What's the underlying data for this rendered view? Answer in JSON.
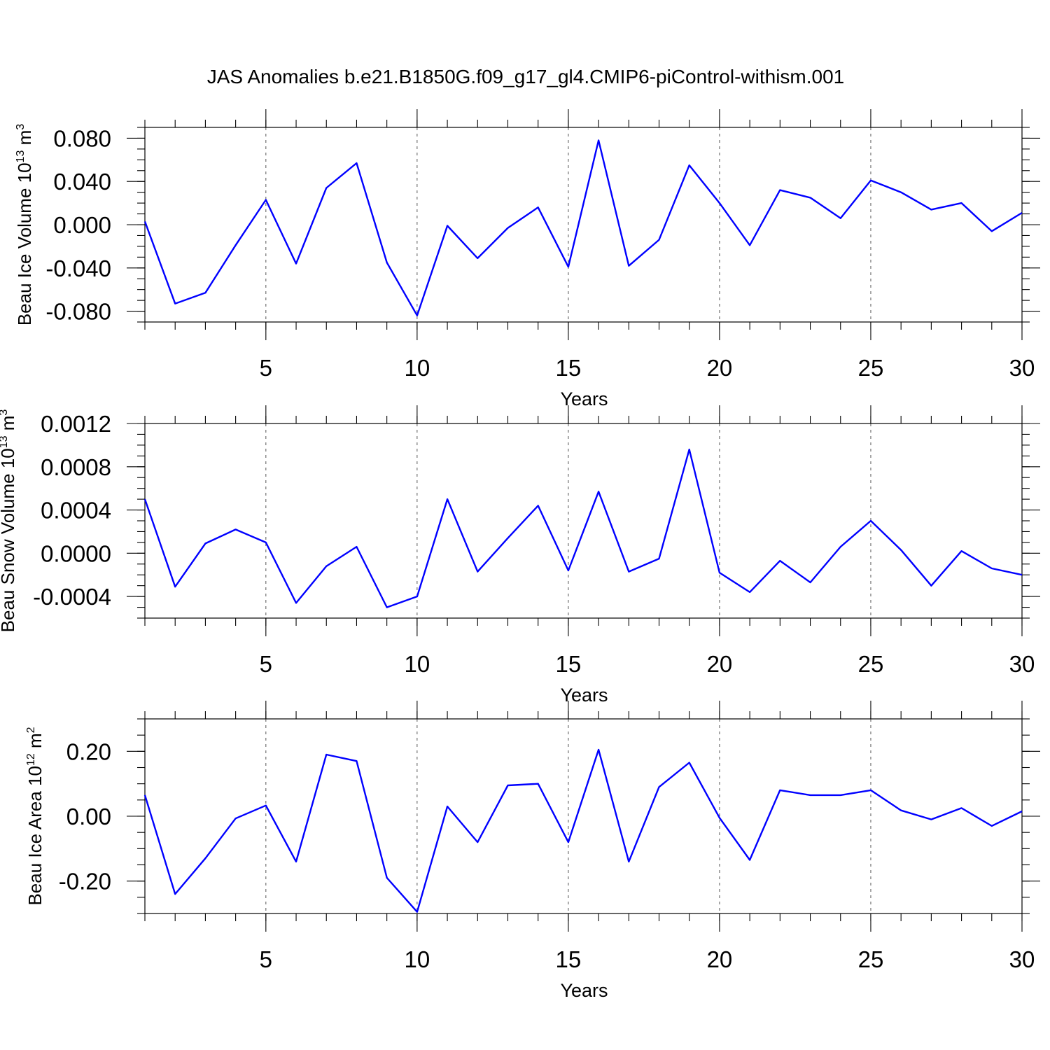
{
  "title": "JAS Anomalies b.e21.B1850G.f09_g17_gl4.CMIP6-piControl-withism.001",
  "chart_data": [
    {
      "type": "line",
      "name": "beau-ice-volume",
      "ylabel": "Beau Ice Volume 10",
      "ylabel_exp": "13",
      "ylabel_unit": " m",
      "ylabel_unit_exp": "3",
      "xlabel": "Years",
      "xlim": [
        1,
        30
      ],
      "ylim": [
        -0.09,
        0.09
      ],
      "x_ticks": [
        5,
        10,
        15,
        20,
        25,
        30
      ],
      "x_tick_labels": [
        "5",
        "10",
        "15",
        "20",
        "25",
        "30"
      ],
      "y_ticks": [
        -0.08,
        -0.04,
        0.0,
        0.04,
        0.08
      ],
      "y_tick_labels": [
        "-0.080",
        "-0.040",
        "0.000",
        "0.040",
        "0.080"
      ],
      "y_minor_step": 0.01,
      "x": [
        1,
        2,
        3,
        4,
        5,
        6,
        7,
        8,
        9,
        10,
        11,
        12,
        13,
        14,
        15,
        16,
        17,
        18,
        19,
        20,
        21,
        22,
        23,
        24,
        25,
        26,
        27,
        28,
        29,
        30
      ],
      "values": [
        0.003,
        -0.073,
        -0.063,
        -0.019,
        0.023,
        -0.036,
        0.034,
        0.057,
        -0.035,
        -0.084,
        -0.001,
        -0.031,
        -0.003,
        0.016,
        -0.039,
        0.078,
        -0.038,
        -0.014,
        0.055,
        0.02,
        -0.019,
        0.032,
        0.025,
        0.006,
        0.041,
        0.03,
        0.014,
        0.02,
        -0.006,
        0.011
      ],
      "color": "#0000ff"
    },
    {
      "type": "line",
      "name": "beau-snow-volume",
      "ylabel": "Beau Snow Volume 10",
      "ylabel_exp": "13",
      "ylabel_unit": " m",
      "ylabel_unit_exp": "3",
      "xlabel": "Years",
      "xlim": [
        1,
        30
      ],
      "ylim": [
        -0.0006,
        0.0012
      ],
      "x_ticks": [
        5,
        10,
        15,
        20,
        25,
        30
      ],
      "x_tick_labels": [
        "5",
        "10",
        "15",
        "20",
        "25",
        "30"
      ],
      "y_ticks": [
        -0.0004,
        0.0,
        0.0004,
        0.0008,
        0.0012
      ],
      "y_tick_labels": [
        "-0.0004",
        "0.0000",
        "0.0004",
        "0.0008",
        "0.0012"
      ],
      "y_minor_step": 0.0001,
      "x": [
        1,
        2,
        3,
        4,
        5,
        6,
        7,
        8,
        9,
        10,
        11,
        12,
        13,
        14,
        15,
        16,
        17,
        18,
        19,
        20,
        21,
        22,
        23,
        24,
        25,
        26,
        27,
        28,
        29,
        30
      ],
      "values": [
        0.0005,
        -0.00031,
        9e-05,
        0.00022,
        0.0001,
        -0.00046,
        -0.00012,
        6e-05,
        -0.0005,
        -0.0004,
        0.0005,
        -0.00017,
        0.00014,
        0.00044,
        -0.00016,
        0.00057,
        -0.00017,
        -5e-05,
        0.00096,
        -0.00018,
        -0.00036,
        -7e-05,
        -0.00027,
        6e-05,
        0.0003,
        3e-05,
        -0.0003,
        2e-05,
        -0.00014,
        -0.0002
      ],
      "color": "#0000ff"
    },
    {
      "type": "line",
      "name": "beau-ice-area",
      "ylabel": "Beau Ice Area 10",
      "ylabel_exp": "12",
      "ylabel_unit": " m",
      "ylabel_unit_exp": "2",
      "xlabel": "Years",
      "xlim": [
        1,
        30
      ],
      "ylim": [
        -0.3,
        0.3
      ],
      "x_ticks": [
        5,
        10,
        15,
        20,
        25,
        30
      ],
      "x_tick_labels": [
        "5",
        "10",
        "15",
        "20",
        "25",
        "30"
      ],
      "y_ticks": [
        -0.2,
        0.0,
        0.2
      ],
      "y_tick_labels": [
        "-0.20",
        "0.00",
        "0.20"
      ],
      "y_minor_step": 0.05,
      "x": [
        1,
        2,
        3,
        4,
        5,
        6,
        7,
        8,
        9,
        10,
        11,
        12,
        13,
        14,
        15,
        16,
        17,
        18,
        19,
        20,
        21,
        22,
        23,
        24,
        25,
        26,
        27,
        28,
        29,
        30
      ],
      "values": [
        0.065,
        -0.24,
        -0.13,
        -0.007,
        0.033,
        -0.14,
        0.19,
        0.17,
        -0.19,
        -0.295,
        0.03,
        -0.08,
        0.095,
        0.1,
        -0.08,
        0.205,
        -0.14,
        0.09,
        0.165,
        -0.005,
        -0.135,
        0.08,
        0.065,
        0.065,
        0.08,
        0.018,
        -0.01,
        0.025,
        -0.03,
        0.015
      ],
      "color": "#0000ff"
    }
  ]
}
